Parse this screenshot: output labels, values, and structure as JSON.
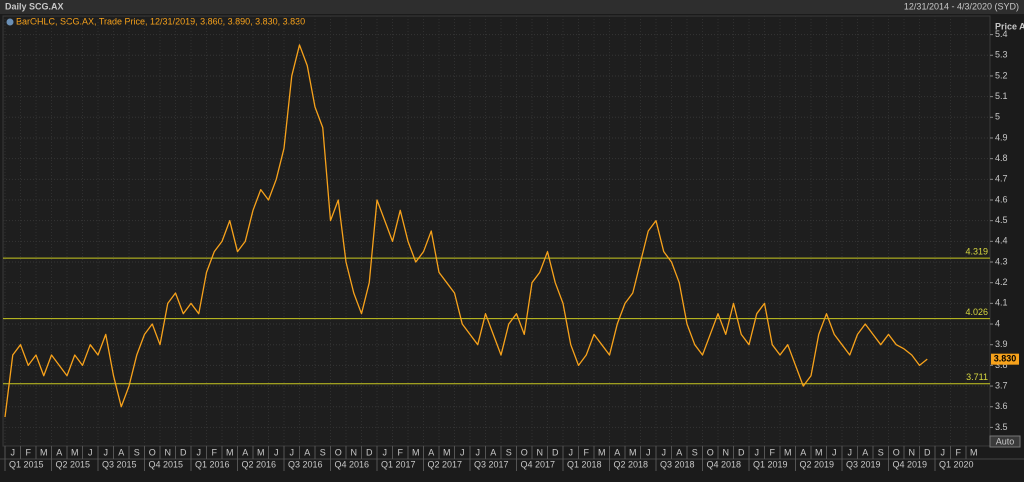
{
  "chart_data": {
    "type": "line",
    "title": "Daily SCG.AX",
    "date_range": "12/31/2014 - 4/3/2020 (SYD)",
    "legend_text": "BarOHLC, SCG.AX, Trade Price, 12/31/2019, 3.860, 3.890, 3.830, 3.830",
    "y_axis_label": "Price AUD",
    "categories": [
      "J",
      null,
      "F",
      null,
      "M",
      null,
      "A",
      null,
      "M",
      null,
      "J",
      null,
      "J",
      null,
      "A",
      null,
      "S",
      null,
      "O",
      null,
      "N",
      null,
      "D",
      null,
      "J",
      null,
      "F",
      null,
      "M",
      null,
      "A",
      null,
      "M",
      null,
      "J",
      null,
      "J",
      null,
      "A",
      null,
      "S",
      null,
      "O",
      null,
      "N",
      null,
      "D",
      null,
      "J",
      null,
      "F",
      null,
      "M",
      null,
      "A",
      null,
      "M",
      null,
      "J",
      null,
      "J",
      null,
      "A",
      null,
      "S",
      null,
      "O",
      null,
      "N",
      null,
      "D",
      null,
      "J",
      null,
      "F",
      null,
      "M",
      null,
      "A",
      null,
      "M",
      null,
      "J",
      null,
      "J",
      null,
      "A",
      null,
      "S",
      null,
      "O",
      null,
      "N",
      null,
      "D",
      null,
      "J",
      null,
      "F",
      null,
      "M",
      null,
      "A",
      null,
      "M",
      null,
      "J",
      null,
      "J",
      null,
      "A",
      null,
      "S",
      null,
      "O",
      null,
      "N",
      null,
      "D",
      null,
      "J",
      null,
      "F",
      null,
      "M",
      null
    ],
    "quarters": [
      "Q1 2015",
      "Q2 2015",
      "Q3 2015",
      "Q4 2015",
      "Q1 2016",
      "Q2 2016",
      "Q3 2016",
      "Q4 2016",
      "Q1 2017",
      "Q2 2017",
      "Q3 2017",
      "Q4 2017",
      "Q1 2018",
      "Q2 2018",
      "Q3 2018",
      "Q4 2018",
      "Q1 2019",
      "Q2 2019",
      "Q3 2019",
      "Q4 2019",
      "Q1 2020"
    ],
    "series": [
      {
        "name": "SCG.AX",
        "color": "#f7a21b",
        "values": [
          3.55,
          3.85,
          3.9,
          3.8,
          3.85,
          3.75,
          3.85,
          3.8,
          3.75,
          3.85,
          3.8,
          3.9,
          3.85,
          3.95,
          3.75,
          3.6,
          3.7,
          3.85,
          3.95,
          4.0,
          3.9,
          4.1,
          4.15,
          4.05,
          4.1,
          4.05,
          4.25,
          4.35,
          4.4,
          4.5,
          4.35,
          4.4,
          4.55,
          4.65,
          4.6,
          4.7,
          4.85,
          5.2,
          5.35,
          5.25,
          5.05,
          4.95,
          4.5,
          4.6,
          4.3,
          4.15,
          4.05,
          4.2,
          4.6,
          4.5,
          4.4,
          4.55,
          4.4,
          4.3,
          4.35,
          4.45,
          4.25,
          4.2,
          4.15,
          4.0,
          3.95,
          3.9,
          4.05,
          3.95,
          3.85,
          4.0,
          4.05,
          3.95,
          4.2,
          4.25,
          4.35,
          4.2,
          4.1,
          3.9,
          3.8,
          3.85,
          3.95,
          3.9,
          3.85,
          4.0,
          4.1,
          4.15,
          4.3,
          4.45,
          4.5,
          4.35,
          4.3,
          4.2,
          4.0,
          3.9,
          3.85,
          3.95,
          4.05,
          3.95,
          4.1,
          3.95,
          3.9,
          4.05,
          4.1,
          3.9,
          3.85,
          3.9,
          3.8,
          3.7,
          3.75,
          3.95,
          4.05,
          3.95,
          3.9,
          3.85,
          3.95,
          4.0,
          3.95,
          3.9,
          3.95,
          3.9,
          3.88,
          3.85,
          3.8,
          3.83,
          null,
          null,
          null,
          null,
          null,
          null
        ]
      }
    ],
    "hlines": [
      4.319,
      4.026,
      3.711
    ],
    "last_price": {
      "value": 3.83,
      "label": "3.830"
    },
    "ylim": [
      3.41,
      5.49
    ],
    "yticks": [
      3.5,
      3.6,
      3.7,
      3.8,
      3.9,
      4,
      4.1,
      4.2,
      4.3,
      4.4,
      4.5,
      4.6,
      4.7,
      4.8,
      4.9,
      5,
      5.1,
      5.2,
      5.3,
      5.4
    ],
    "button": "Auto",
    "grid": true
  }
}
